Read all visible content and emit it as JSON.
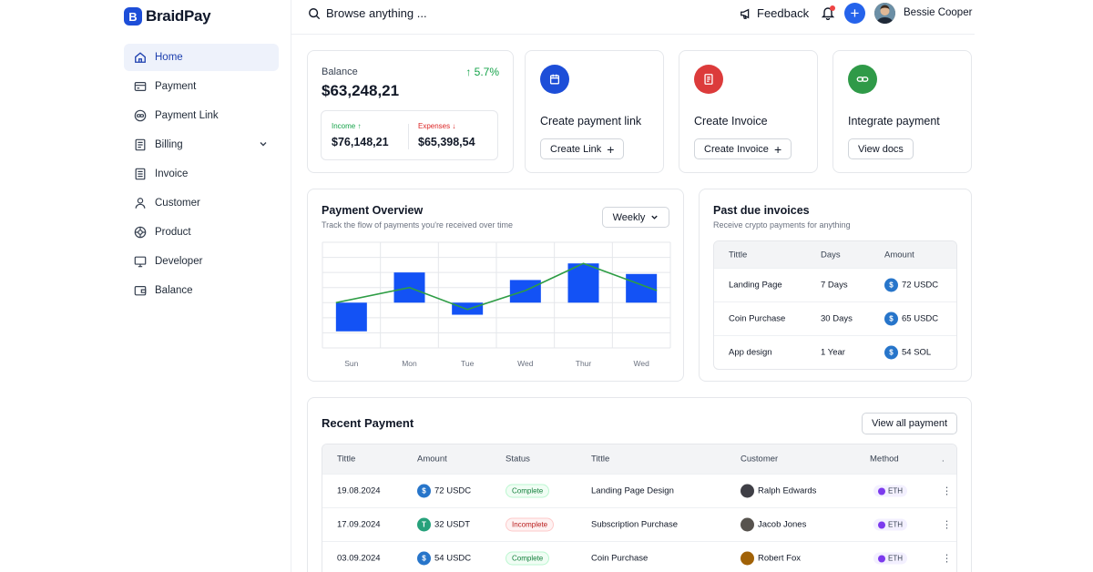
{
  "app": {
    "logo_letter": "B",
    "name": "BraidPay"
  },
  "sidebar": {
    "items": [
      {
        "label": "Home",
        "icon": "home-icon",
        "active": true
      },
      {
        "label": "Payment",
        "icon": "card-icon"
      },
      {
        "label": "Payment Link",
        "icon": "link-circle-icon"
      },
      {
        "label": "Billing",
        "icon": "receipt-icon",
        "expandable": true
      },
      {
        "label": "Invoice",
        "icon": "invoice-icon"
      },
      {
        "label": "Customer",
        "icon": "user-icon"
      },
      {
        "label": "Product",
        "icon": "product-icon"
      },
      {
        "label": "Developer",
        "icon": "monitor-icon"
      },
      {
        "label": "Balance",
        "icon": "wallet-icon"
      }
    ]
  },
  "topbar": {
    "search_placeholder": "Browse anything ...",
    "feedback_label": "Feedback",
    "user_name": "Bessie Cooper"
  },
  "balance": {
    "label": "Balance",
    "value": "$63,248,21",
    "change": "↑ 5.7%",
    "income_label": "Income ↑",
    "income_value": "$76,148,21",
    "expenses_label": "Expenses ↓",
    "expenses_value": "$65,398,54"
  },
  "actions": [
    {
      "title": "Create payment link",
      "button": "Create Link",
      "icon": "calendar-icon",
      "color": "#1d4ed8"
    },
    {
      "title": "Create Invoice",
      "button": "Create Invoice",
      "icon": "invoice-icon",
      "color": "#dc3b3b"
    },
    {
      "title": "Integrate payment",
      "button": "View docs",
      "icon": "link-icon",
      "color": "#2f9a48"
    }
  ],
  "overview": {
    "title": "Payment Overview",
    "subtitle": "Track the flow of payments you're received over time",
    "period": "Weekly"
  },
  "chart_data": {
    "type": "bar",
    "categories": [
      "Sun",
      "Mon",
      "Tue",
      "Wed",
      "Thur",
      "Wed"
    ],
    "series": [
      {
        "type": "bar",
        "color": "#1352f5",
        "ranges": [
          [
            -1.9,
            0
          ],
          [
            0,
            2.0
          ],
          [
            -0.8,
            0
          ],
          [
            0,
            1.5
          ],
          [
            0,
            2.6
          ],
          [
            0,
            1.9
          ]
        ]
      },
      {
        "type": "line",
        "color": "#2e9d45",
        "values": [
          0,
          1.0,
          -0.45,
          0.8,
          2.6,
          0.8
        ]
      }
    ],
    "ylim": [
      -3,
      4
    ],
    "grid": true
  },
  "invoices": {
    "title": "Past due invoices",
    "subtitle": "Receive crypto payments for anything",
    "headers": [
      "Tittle",
      "Days",
      "Amount"
    ],
    "rows": [
      {
        "title": "Landing Page",
        "days": "7 Days",
        "amount": "72 USDC",
        "coin": "usdc-icon"
      },
      {
        "title": "Coin Purchase",
        "days": "30 Days",
        "amount": "65 USDC",
        "coin": "usdc-icon"
      },
      {
        "title": "App design",
        "days": "1 Year",
        "amount": "54 SOL",
        "coin": "usdc-icon"
      }
    ]
  },
  "recent": {
    "title": "Recent Payment",
    "view_all": "View all payment",
    "headers": [
      "Tittle",
      "Amount",
      "Status",
      "Tittle",
      "Customer",
      "Method",
      "."
    ],
    "rows": [
      {
        "date": "19.08.2024",
        "amount": "72 USDC",
        "coin": "usdc-icon",
        "status": "Complete",
        "ok": true,
        "item": "Landing Page Design",
        "customer": "Ralph Edwards",
        "method": "ETH"
      },
      {
        "date": "17.09.2024",
        "amount": "32 USDT",
        "coin": "usdt-icon",
        "status": "Incomplete",
        "ok": false,
        "item": "Subscription Purchase",
        "customer": "Jacob Jones",
        "method": "ETH"
      },
      {
        "date": "03.09.2024",
        "amount": "54 USDC",
        "coin": "usdc-icon",
        "status": "Complete",
        "ok": true,
        "item": "Coin Purchase",
        "customer": "Robert Fox",
        "method": "ETH"
      }
    ]
  }
}
